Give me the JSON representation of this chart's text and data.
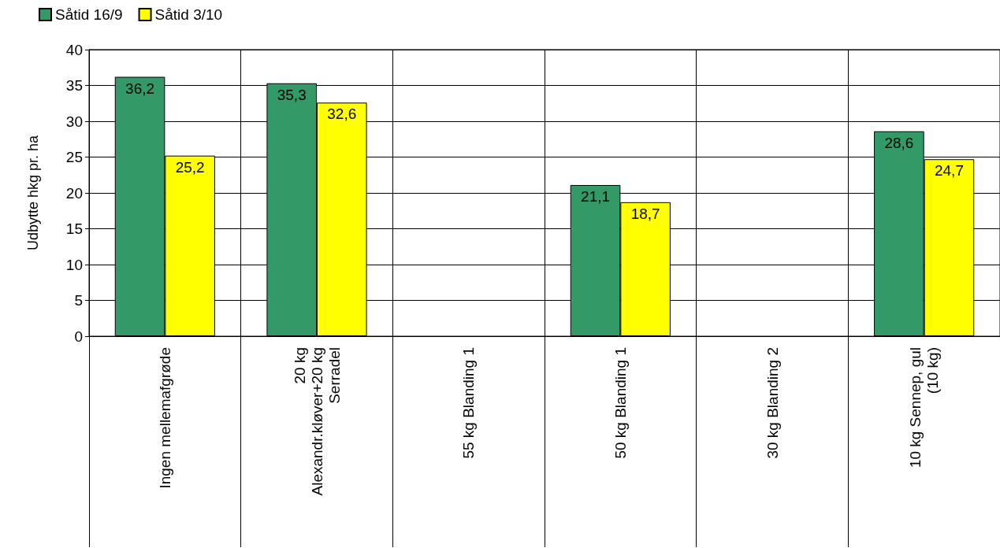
{
  "chart_data": {
    "type": "bar",
    "ylabel": "Udbytte hkg pr. ha",
    "categories": [
      "Ingen mellemafgrøde",
      "20 kg\nAlexandr.kløver+20 kg\nSerradel",
      "55 kg Blanding 1",
      "50 kg Blanding 1",
      "30 kg Blanding 2",
      "10 kg Sennep, gul\n(10 kg)"
    ],
    "series": [
      {
        "name": "Såtid 16/9",
        "color": "#339966",
        "values": [
          36.2,
          35.3,
          null,
          21.1,
          null,
          28.6
        ],
        "value_labels": [
          "36,2",
          "35,3",
          null,
          "21,1",
          null,
          "28,6"
        ]
      },
      {
        "name": "Såtid 3/10",
        "color": "#ffff00",
        "values": [
          25.2,
          32.6,
          null,
          18.7,
          null,
          24.7
        ],
        "value_labels": [
          "25,2",
          "32,6",
          null,
          "18,7",
          null,
          "24,7"
        ]
      }
    ],
    "ylim": [
      0,
      40
    ],
    "yticks": [
      0,
      5,
      10,
      15,
      20,
      25,
      30,
      35,
      40
    ],
    "grid": "y",
    "legend": "top left"
  }
}
